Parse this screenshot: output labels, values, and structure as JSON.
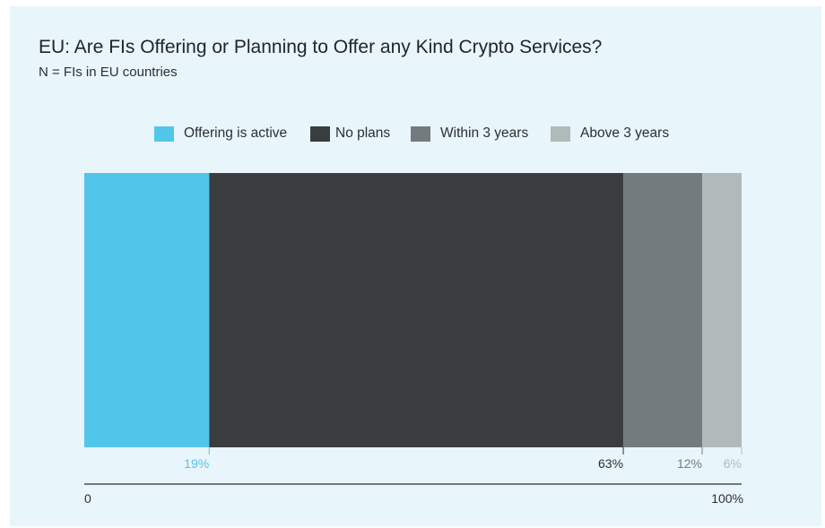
{
  "title": "EU: Are FIs Offering or Planning to Offer any Kind Crypto Services?",
  "subtitle": "N = FIs in EU countries",
  "chart_data": {
    "type": "bar",
    "orientation": "horizontal-stacked",
    "title": "EU: Are FIs Offering or Planning to Offer any Kind Crypto Services?",
    "subtitle": "N = FIs in EU countries",
    "legend_position": "top-center",
    "grid": false,
    "xlim": [
      0,
      100
    ],
    "axis_tick_labels": [
      "0",
      "100%"
    ],
    "series": [
      {
        "name": "Offering is active",
        "value": 19,
        "label": "19%",
        "color": "#52c6e9",
        "label_color": "#52c6e9"
      },
      {
        "name": "No plans",
        "value": 63,
        "label": "63%",
        "color": "#3a3d40",
        "label_color": "#2b2f33"
      },
      {
        "name": "Within 3 years",
        "value": 12,
        "label": "12%",
        "color": "#747b7e",
        "label_color": "#747b7e"
      },
      {
        "name": "Above 3 years",
        "value": 6,
        "label": "6%",
        "color": "#b0babb",
        "label_color": "#b0babb"
      }
    ]
  }
}
